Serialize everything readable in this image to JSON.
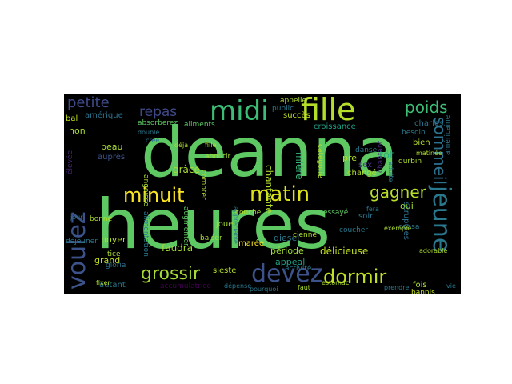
{
  "wordcloud": {
    "palette": {
      "green": "#5ec962",
      "teal": "#21918c",
      "blue": "#3b528b",
      "purple": "#482878",
      "dark_purple": "#440154",
      "lime": "#addc30",
      "yellow": "#fde725",
      "cyan": "#29af7f",
      "dark_blue": "#31688e"
    },
    "words": [
      {
        "text": "deanna",
        "color": "#5ec962"
      },
      {
        "text": "heures",
        "color": "#5ec962"
      },
      {
        "text": "fille",
        "color": "#b5de2b"
      },
      {
        "text": "midi",
        "color": "#3cbc75"
      },
      {
        "text": "matin",
        "color": "#dde318"
      },
      {
        "text": "minuit",
        "color": "#fde725"
      },
      {
        "text": "jeune",
        "color": "#2a788e"
      },
      {
        "text": "voulez",
        "color": "#3b528b"
      },
      {
        "text": "devez",
        "color": "#3b528b"
      },
      {
        "text": "dormir",
        "color": "#c2df23"
      },
      {
        "text": "grossir",
        "color": "#a5db36"
      },
      {
        "text": "gagner",
        "color": "#b8de29"
      },
      {
        "text": "sommeil",
        "color": "#2c728e"
      },
      {
        "text": "poids",
        "color": "#3cbc75"
      },
      {
        "text": "petite",
        "color": "#3e4a89"
      },
      {
        "text": "repas",
        "color": "#3e4989"
      },
      {
        "text": "tôt",
        "color": "#29af7f"
      },
      {
        "text": "oui",
        "color": "#a5db36"
      },
      {
        "text": "soir",
        "color": "#2c728e"
      },
      {
        "text": "délicieuse",
        "color": "#c2df23"
      },
      {
        "text": "appeal",
        "color": "#1fa187"
      },
      {
        "text": "diesel",
        "color": "#2a788e"
      },
      {
        "text": "période",
        "color": "#a2da37"
      },
      {
        "text": "chantante",
        "color": "#b5de2b"
      },
      {
        "text": "marée",
        "color": "#fde725"
      },
      {
        "text": "mière",
        "color": "#35b779"
      },
      {
        "text": "grâce",
        "color": "#addc30"
      },
      {
        "text": "faudra",
        "color": "#a2da37"
      },
      {
        "text": "sieste",
        "color": "#b5de2b"
      },
      {
        "text": "joue",
        "color": "#a5db36"
      },
      {
        "text": "boyer",
        "color": "#b8de29"
      },
      {
        "text": "grand",
        "color": "#c2df23"
      },
      {
        "text": "beau",
        "color": "#a5db36"
      },
      {
        "text": "auprès",
        "color": "#3b528b"
      },
      {
        "text": "non",
        "color": "#a5db36"
      },
      {
        "text": "bal",
        "color": "#c2df23"
      },
      {
        "text": "amérique",
        "color": "#2c728e"
      },
      {
        "text": "absorberez",
        "color": "#5ec962"
      },
      {
        "text": "aliments",
        "color": "#5ec962"
      },
      {
        "text": "succès",
        "color": "#c2df23"
      },
      {
        "text": "public",
        "color": "#2a788e"
      },
      {
        "text": "appelle",
        "color": "#addc30"
      },
      {
        "text": "croissance",
        "color": "#1fa187"
      },
      {
        "text": "charles",
        "color": "#2c728e"
      },
      {
        "text": "bien",
        "color": "#b5de2b"
      },
      {
        "text": "besoin",
        "color": "#2a788e"
      },
      {
        "text": "pre",
        "color": "#b5de2b"
      },
      {
        "text": "sex",
        "color": "#443a83"
      },
      {
        "text": "catégorie",
        "color": "#b5de2b"
      },
      {
        "text": "scrupules",
        "color": "#2c728e"
      },
      {
        "text": "fois",
        "color": "#addc30"
      },
      {
        "text": "bannis",
        "color": "#c2df23"
      },
      {
        "text": "autant",
        "color": "#2a788e"
      },
      {
        "text": "accumulatrice",
        "color": "#440154"
      },
      {
        "text": "bonne",
        "color": "#addc30"
      },
      {
        "text": "tice",
        "color": "#addc30"
      },
      {
        "text": "gloria",
        "color": "#2c728e"
      },
      {
        "text": "aboutir",
        "color": "#a2da37"
      },
      {
        "text": "déjà",
        "color": "#addc30"
      },
      {
        "text": "baiser",
        "color": "#addc30"
      },
      {
        "text": "compter",
        "color": "#addc30"
      },
      {
        "text": "angoisse",
        "color": "#addc30"
      },
      {
        "text": "augmenter",
        "color": "#5ec962"
      },
      {
        "text": "alimentation",
        "color": "#2a788e"
      },
      {
        "text": "appréciable",
        "color": "#2a788e"
      },
      {
        "text": "couche",
        "color": "#addc30"
      },
      {
        "text": "activité",
        "color": "#2a788e"
      },
      {
        "text": "changé",
        "color": "#addc30"
      },
      {
        "text": "essayé",
        "color": "#5ec962"
      },
      {
        "text": "consa",
        "color": "#2a788e"
      },
      {
        "text": "exemple",
        "color": "#addc30"
      },
      {
        "text": "durbin",
        "color": "#addc30"
      },
      {
        "text": "adorable",
        "color": "#addc30"
      },
      {
        "text": "danse",
        "color": "#2a788e"
      },
      {
        "text": "déjeuner",
        "color": "#2a788e"
      },
      {
        "text": "fixer",
        "color": "#addc30"
      },
      {
        "text": "double",
        "color": "#2a788e"
      },
      {
        "text": "fille",
        "color": "#addc30"
      },
      {
        "text": "crée",
        "color": "#2a788e"
      },
      {
        "text": "cienne",
        "color": "#addc30"
      },
      {
        "text": "adulte",
        "color": "#2a788e"
      },
      {
        "text": "chantant",
        "color": "#482878"
      },
      {
        "text": "élevée",
        "color": "#482878"
      },
      {
        "text": "américaine",
        "color": "#2a788e"
      },
      {
        "text": "matinée",
        "color": "#addc30"
      },
      {
        "text": "fera",
        "color": "#2a788e"
      },
      {
        "text": "dépense",
        "color": "#2a788e"
      },
      {
        "text": "coucher",
        "color": "#2a788e"
      },
      {
        "text": "estomac",
        "color": "#addc30"
      },
      {
        "text": "pourquoi",
        "color": "#2a788e"
      },
      {
        "text": "jour",
        "color": "#2a788e"
      },
      {
        "text": "faut",
        "color": "#addc30"
      },
      {
        "text": "prendre",
        "color": "#2a788e"
      },
      {
        "text": "vie",
        "color": "#2a788e"
      }
    ]
  }
}
